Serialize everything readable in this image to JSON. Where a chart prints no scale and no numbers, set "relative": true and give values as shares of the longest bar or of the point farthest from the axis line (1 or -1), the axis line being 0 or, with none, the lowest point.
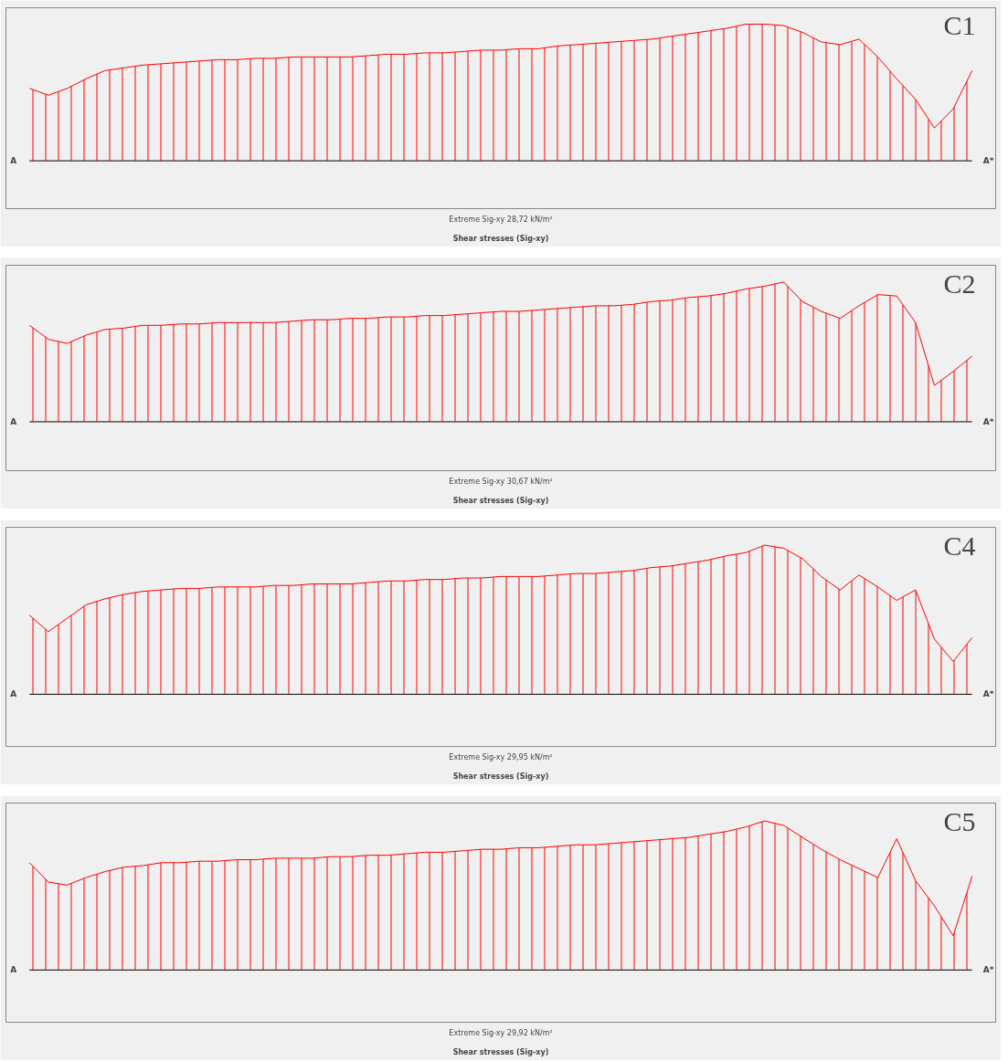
{
  "chart_data": [
    {
      "type": "area",
      "relative": true,
      "title": "Shear stresses (Sig-xy)",
      "subtitle": "Extreme Sig-xy 28,72 kN/m²",
      "grid": false,
      "tick_labels": false,
      "annotations": [
        "C1",
        "A",
        "A*"
      ],
      "categories": [
        null,
        null,
        null,
        null,
        null,
        null,
        null,
        null,
        null,
        null,
        null,
        null,
        null,
        null,
        null,
        null,
        null,
        null,
        null,
        null,
        null,
        null,
        null,
        null,
        null,
        null,
        null,
        null,
        null,
        null,
        null,
        null,
        null,
        null,
        null,
        null,
        null,
        null,
        null,
        null,
        null,
        null,
        null,
        null,
        null,
        null,
        null,
        null,
        null,
        null,
        null
      ],
      "series": [
        {
          "color": "#ff0000",
          "values": [
            0.53,
            0.48,
            0.53,
            0.6,
            0.66,
            0.68,
            0.7,
            0.71,
            0.72,
            0.73,
            0.74,
            0.74,
            0.75,
            0.75,
            0.76,
            0.76,
            0.76,
            0.76,
            0.77,
            0.78,
            0.78,
            0.79,
            0.79,
            0.8,
            0.81,
            0.81,
            0.82,
            0.82,
            0.84,
            0.85,
            0.86,
            0.87,
            0.88,
            0.89,
            0.91,
            0.93,
            0.95,
            0.97,
            1,
            1,
            0.99,
            0.94,
            0.87,
            0.85,
            0.89,
            0.76,
            0.6,
            0.45,
            0.24,
            0.38,
            0.66
          ]
        }
      ]
    },
    {
      "type": "area",
      "relative": true,
      "title": "Shear stresses (Sig-xy)",
      "subtitle": "Extreme Sig-xy 30,67 kN/m²",
      "grid": false,
      "tick_labels": false,
      "annotations": [
        "C2",
        "A",
        "A*"
      ],
      "categories": [
        null,
        null,
        null,
        null,
        null,
        null,
        null,
        null,
        null,
        null,
        null,
        null,
        null,
        null,
        null,
        null,
        null,
        null,
        null,
        null,
        null,
        null,
        null,
        null,
        null,
        null,
        null,
        null,
        null,
        null,
        null,
        null,
        null,
        null,
        null,
        null,
        null,
        null,
        null,
        null,
        null,
        null,
        null,
        null,
        null,
        null,
        null,
        null,
        null,
        null,
        null
      ],
      "series": [
        {
          "color": "#ff0000",
          "values": [
            0.69,
            0.59,
            0.56,
            0.62,
            0.66,
            0.67,
            0.69,
            0.69,
            0.7,
            0.7,
            0.71,
            0.71,
            0.71,
            0.71,
            0.72,
            0.73,
            0.73,
            0.74,
            0.74,
            0.75,
            0.75,
            0.76,
            0.76,
            0.77,
            0.78,
            0.79,
            0.79,
            0.8,
            0.81,
            0.82,
            0.83,
            0.83,
            0.84,
            0.86,
            0.87,
            0.89,
            0.9,
            0.92,
            0.95,
            0.97,
            1,
            0.86,
            0.79,
            0.74,
            0.83,
            0.91,
            0.9,
            0.71,
            0.26,
            0.36,
            0.47
          ]
        }
      ]
    },
    {
      "type": "area",
      "relative": true,
      "title": "Shear stresses (Sig-xy)",
      "subtitle": "Extreme Sig-xy 29,95 kN/m²",
      "grid": false,
      "tick_labels": false,
      "annotations": [
        "C4",
        "A",
        "A*"
      ],
      "categories": [
        null,
        null,
        null,
        null,
        null,
        null,
        null,
        null,
        null,
        null,
        null,
        null,
        null,
        null,
        null,
        null,
        null,
        null,
        null,
        null,
        null,
        null,
        null,
        null,
        null,
        null,
        null,
        null,
        null,
        null,
        null,
        null,
        null,
        null,
        null,
        null,
        null,
        null,
        null,
        null,
        null,
        null,
        null,
        null,
        null,
        null,
        null,
        null,
        null,
        null,
        null
      ],
      "series": [
        {
          "color": "#ff0000",
          "values": [
            0.53,
            0.42,
            0.51,
            0.6,
            0.64,
            0.67,
            0.69,
            0.7,
            0.71,
            0.71,
            0.72,
            0.72,
            0.72,
            0.73,
            0.73,
            0.74,
            0.74,
            0.74,
            0.75,
            0.76,
            0.76,
            0.77,
            0.77,
            0.78,
            0.78,
            0.79,
            0.79,
            0.79,
            0.8,
            0.81,
            0.81,
            0.82,
            0.83,
            0.85,
            0.86,
            0.88,
            0.9,
            0.93,
            0.95,
            1,
            0.98,
            0.91,
            0.79,
            0.7,
            0.8,
            0.72,
            0.63,
            0.7,
            0.37,
            0.22,
            0.38
          ]
        }
      ]
    },
    {
      "type": "area",
      "relative": true,
      "title": "Shear stresses (Sig-xy)",
      "subtitle": "Extreme Sig-xy 29,92 kN/m²",
      "grid": false,
      "tick_labels": false,
      "annotations": [
        "C5",
        "A",
        "A*"
      ],
      "categories": [
        null,
        null,
        null,
        null,
        null,
        null,
        null,
        null,
        null,
        null,
        null,
        null,
        null,
        null,
        null,
        null,
        null,
        null,
        null,
        null,
        null,
        null,
        null,
        null,
        null,
        null,
        null,
        null,
        null,
        null,
        null,
        null,
        null,
        null,
        null,
        null,
        null,
        null,
        null,
        null,
        null,
        null,
        null,
        null,
        null,
        null,
        null,
        null,
        null,
        null,
        null
      ],
      "series": [
        {
          "color": "#ff0000",
          "values": [
            0.72,
            0.59,
            0.57,
            0.62,
            0.66,
            0.69,
            0.7,
            0.72,
            0.72,
            0.73,
            0.73,
            0.74,
            0.74,
            0.75,
            0.75,
            0.75,
            0.76,
            0.76,
            0.77,
            0.77,
            0.78,
            0.79,
            0.79,
            0.8,
            0.81,
            0.81,
            0.82,
            0.82,
            0.83,
            0.84,
            0.84,
            0.85,
            0.86,
            0.87,
            0.88,
            0.89,
            0.91,
            0.93,
            0.96,
            1,
            0.97,
            0.89,
            0.81,
            0.74,
            0.68,
            0.62,
            0.88,
            0.6,
            0.43,
            0.23,
            0.63
          ]
        }
      ]
    }
  ]
}
